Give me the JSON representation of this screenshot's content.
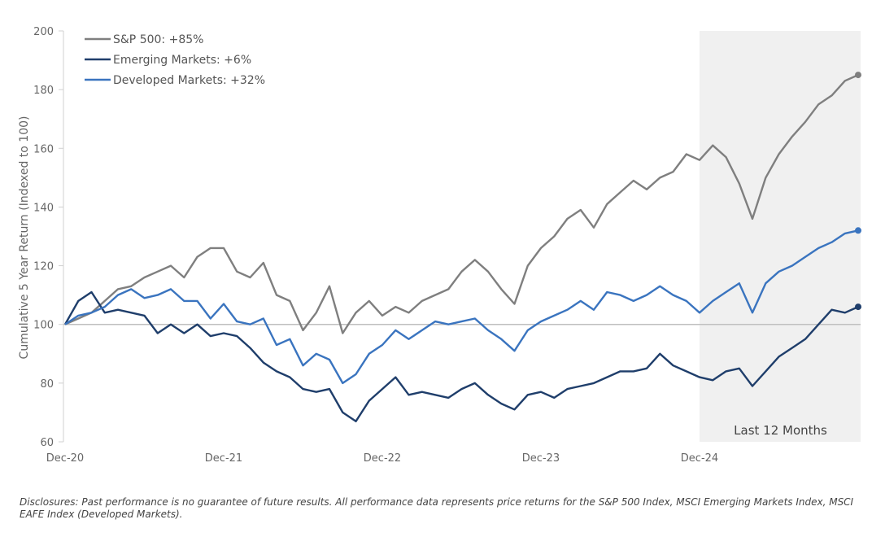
{
  "chart_data": {
    "type": "line",
    "ylabel": "Cumulative 5 Year Return (Indexed to 100)",
    "xlabel": "",
    "ylim": [
      60,
      200
    ],
    "yticks": [
      60,
      80,
      100,
      120,
      140,
      160,
      180,
      200
    ],
    "xticks": [
      {
        "label": "Dec-20",
        "month": 0
      },
      {
        "label": "Dec-21",
        "month": 12
      },
      {
        "label": "Dec-22",
        "month": 24
      },
      {
        "label": "Dec-23",
        "month": 36
      },
      {
        "label": "Dec-24",
        "month": 48
      }
    ],
    "x_unit": "months since Dec-20",
    "reference_line": 100,
    "shaded_region": {
      "label": "Last 12 Months",
      "start_month": 48,
      "end_month": 60
    },
    "legend_position": "top-left",
    "series": [
      {
        "name": "S&P 500: +85%",
        "color": "#7f7f7f",
        "values": [
          100,
          102,
          104,
          108,
          112,
          113,
          116,
          118,
          120,
          116,
          123,
          126,
          126,
          118,
          116,
          121,
          110,
          108,
          98,
          104,
          113,
          97,
          104,
          108,
          103,
          106,
          104,
          108,
          110,
          112,
          118,
          122,
          118,
          112,
          107,
          120,
          126,
          130,
          136,
          139,
          133,
          141,
          145,
          149,
          146,
          150,
          152,
          158,
          156,
          161,
          157,
          148,
          136,
          150,
          158,
          164,
          169,
          175,
          178,
          183,
          185
        ]
      },
      {
        "name": "Emerging Markets: +6%",
        "color": "#1f3e6b",
        "values": [
          100,
          108,
          111,
          104,
          105,
          104,
          103,
          97,
          100,
          97,
          100,
          96,
          97,
          96,
          92,
          87,
          84,
          82,
          78,
          77,
          78,
          70,
          67,
          74,
          78,
          82,
          76,
          77,
          76,
          75,
          78,
          80,
          76,
          73,
          71,
          76,
          77,
          75,
          78,
          79,
          80,
          82,
          84,
          84,
          85,
          90,
          86,
          84,
          82,
          81,
          84,
          85,
          79,
          84,
          89,
          92,
          95,
          100,
          105,
          104,
          106
        ]
      },
      {
        "name": "Developed Markets: +32%",
        "color": "#3a74bf",
        "values": [
          100,
          103,
          104,
          106,
          110,
          112,
          109,
          110,
          112,
          108,
          108,
          102,
          107,
          101,
          100,
          102,
          93,
          95,
          86,
          90,
          88,
          80,
          83,
          90,
          93,
          98,
          95,
          98,
          101,
          100,
          101,
          102,
          98,
          95,
          91,
          98,
          101,
          103,
          105,
          108,
          105,
          111,
          110,
          108,
          110,
          113,
          110,
          108,
          104,
          108,
          111,
          114,
          104,
          114,
          118,
          120,
          123,
          126,
          128,
          131,
          132
        ]
      }
    ]
  },
  "disclosure": "Disclosures: Past performance is no guarantee of future results. All performance data represents price returns for the S&P 500 Index, MSCI Emerging Markets Index, MSCI EAFE Index (Developed Markets)."
}
